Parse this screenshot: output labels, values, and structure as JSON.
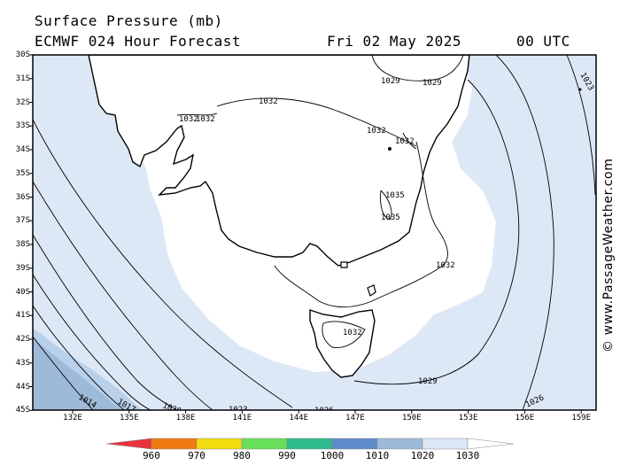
{
  "header": {
    "title": "Surface Pressure (mb)",
    "model": "ECMWF 024 Hour Forecast",
    "date": "Fri 02 May 2025",
    "time": "00 UTC"
  },
  "map": {
    "lat_labels": [
      "30S",
      "31S",
      "32S",
      "33S",
      "34S",
      "35S",
      "36S",
      "37S",
      "38S",
      "39S",
      "40S",
      "41S",
      "42S",
      "43S",
      "44S",
      "45S"
    ],
    "lon_labels": [
      "132E",
      "135E",
      "138E",
      "141E",
      "144E",
      "147E",
      "150E",
      "153E",
      "156E",
      "159E"
    ],
    "isobar_labels": [
      "1032",
      "1032",
      "1032",
      "1032",
      "1032",
      "1029",
      "1029",
      "1023",
      "1035",
      "1035",
      "1032",
      "1032",
      "1029",
      "1026",
      "1014",
      "1017",
      "1020",
      "1023",
      "1026"
    ],
    "colors": {
      "lt30": "#dde8f7",
      "lt20": "#b9d0ea",
      "lt10": "#9ebad9",
      "land": "#ffffff",
      "ocean_high": "#ffffff"
    }
  },
  "colorbar": {
    "labels": [
      "960",
      "970",
      "980",
      "990",
      "1000",
      "1010",
      "1020",
      "1030"
    ],
    "colors": [
      "#e8323c",
      "#f07a10",
      "#f3dc10",
      "#68e05a",
      "#2eba8c",
      "#5e8cca",
      "#9ebad9",
      "#dde8f7",
      "#ffffff"
    ]
  },
  "copyright": "© www.PassageWeather.com"
}
